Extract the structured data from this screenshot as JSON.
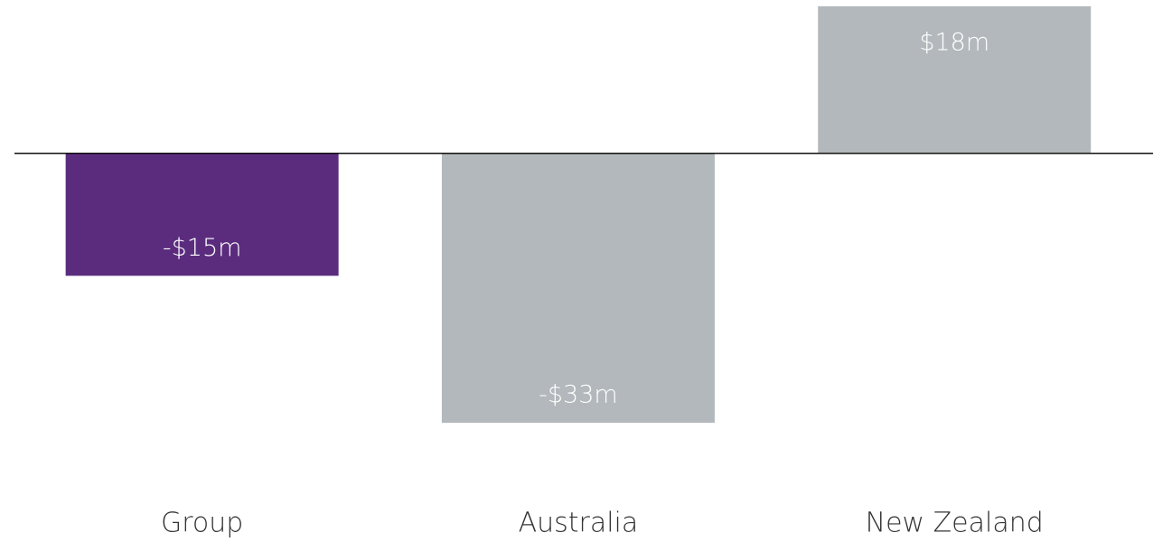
{
  "chart_data": {
    "type": "bar",
    "categories": [
      "Group",
      "Australia",
      "New Zealand"
    ],
    "values": [
      -15,
      -33,
      18
    ],
    "value_labels": [
      "-$15m",
      "-$33m",
      "$18m"
    ],
    "colors": [
      "#5b2c7e",
      "#b2b8bb",
      "#b2b8bb"
    ]
  }
}
